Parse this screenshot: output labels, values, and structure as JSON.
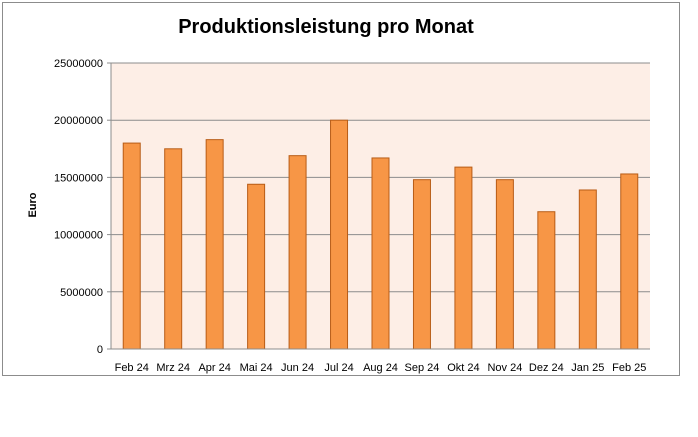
{
  "chart_data": {
    "type": "bar",
    "title": "Produktionsleistung pro Monat",
    "xlabel": "",
    "ylabel": "Euro",
    "categories": [
      "Feb 24",
      "Mrz 24",
      "Apr 24",
      "Mai 24",
      "Jun 24",
      "Jul 24",
      "Aug 24",
      "Sep 24",
      "Okt 24",
      "Nov 24",
      "Dez 24",
      "Jan 25",
      "Feb 25"
    ],
    "values": [
      18000000,
      17500000,
      18300000,
      14400000,
      16900000,
      20000000,
      16700000,
      14800000,
      15900000,
      14800000,
      12000000,
      13900000,
      15300000
    ],
    "ylim": [
      0,
      25000000
    ],
    "yticks": [
      "0",
      "5000000",
      "10000000",
      "15000000",
      "20000000",
      "25000000"
    ],
    "grid": true,
    "legend": "none",
    "colors": {
      "bar_fill": "#f79646",
      "bar_stroke": "#b85c16",
      "plot_background": "#fdeee6",
      "gridline": "#8c8c8c",
      "frame": "#8c8c8c"
    }
  }
}
